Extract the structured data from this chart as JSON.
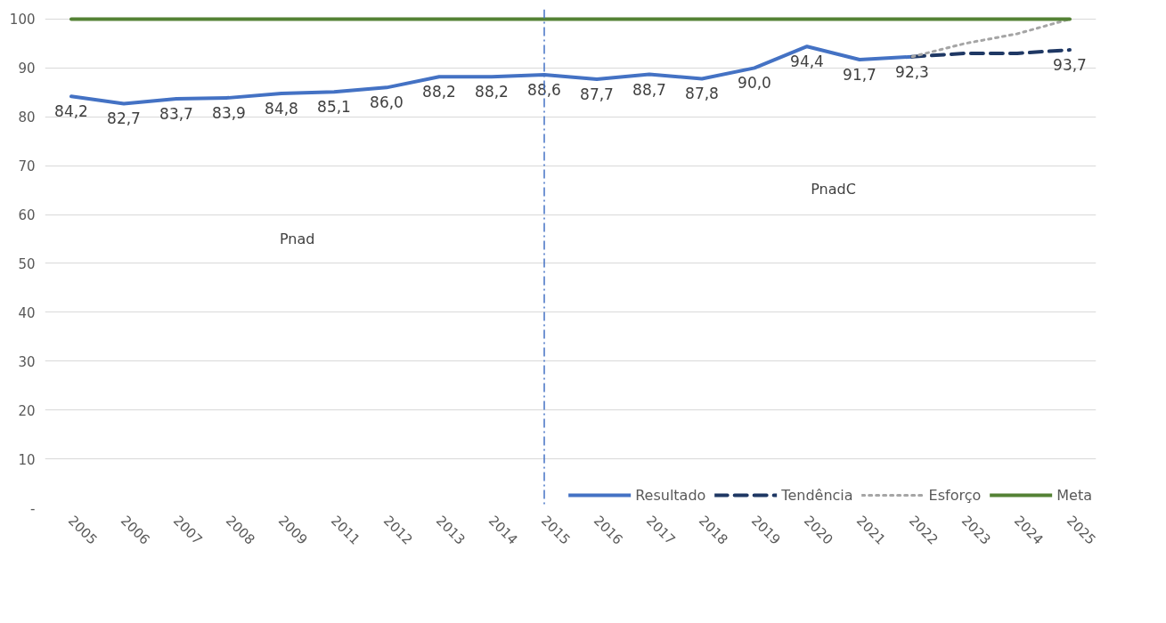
{
  "chart_data": {
    "type": "line",
    "categories": [
      "2005",
      "2006",
      "2007",
      "2008",
      "2009",
      "2011",
      "2012",
      "2013",
      "2014",
      "2015",
      "2016",
      "2017",
      "2018",
      "2019",
      "2020",
      "2021",
      "2022",
      "2023",
      "2024",
      "2025"
    ],
    "series": [
      {
        "name": "Resultado",
        "color": "#4472c4",
        "line_style": "solid",
        "values": [
          84.2,
          82.7,
          83.7,
          83.9,
          84.8,
          85.1,
          86.0,
          88.2,
          88.2,
          88.6,
          87.7,
          88.7,
          87.8,
          90.0,
          94.4,
          91.7,
          92.3,
          null,
          null,
          null
        ],
        "value_labels": [
          "84,2",
          "82,7",
          "83,7",
          "83,9",
          "84,8",
          "85,1",
          "86,0",
          "88,2",
          "88,2",
          "88,6",
          "87,7",
          "88,7",
          "87,8",
          "90,0",
          "94,4",
          "91,7",
          "92,3",
          null,
          null,
          null
        ]
      },
      {
        "name": "Tendência",
        "color": "#1f3864",
        "line_style": "dashed",
        "values": [
          null,
          null,
          null,
          null,
          null,
          null,
          null,
          null,
          null,
          null,
          null,
          null,
          null,
          null,
          null,
          null,
          92.3,
          93,
          93,
          93.7
        ],
        "value_labels": [
          null,
          null,
          null,
          null,
          null,
          null,
          null,
          null,
          null,
          null,
          null,
          null,
          null,
          null,
          null,
          null,
          null,
          null,
          null,
          "93,7"
        ]
      },
      {
        "name": "Esforço",
        "color": "#a5a5a5",
        "line_style": "dotted",
        "values": [
          null,
          null,
          null,
          null,
          null,
          null,
          null,
          null,
          null,
          null,
          null,
          null,
          null,
          null,
          null,
          null,
          92.3,
          95,
          97,
          100
        ]
      },
      {
        "name": "Meta",
        "color": "#548235",
        "line_style": "solid",
        "values": [
          100,
          100,
          100,
          100,
          100,
          100,
          100,
          100,
          100,
          100,
          100,
          100,
          100,
          100,
          100,
          100,
          100,
          100,
          100,
          100
        ]
      }
    ],
    "ylim": [
      0,
      102
    ],
    "yticks": [
      {
        "value": 0,
        "label": "-"
      },
      10,
      20,
      30,
      40,
      50,
      60,
      70,
      80,
      90,
      100
    ],
    "grid": "y",
    "legend": "bottom right",
    "ref_lines": [
      {
        "axis": "x",
        "value": "2015",
        "color": "#4472c4",
        "line_style": "dashdot"
      }
    ],
    "annotations": [
      "Pnad",
      "PnadC"
    ]
  }
}
